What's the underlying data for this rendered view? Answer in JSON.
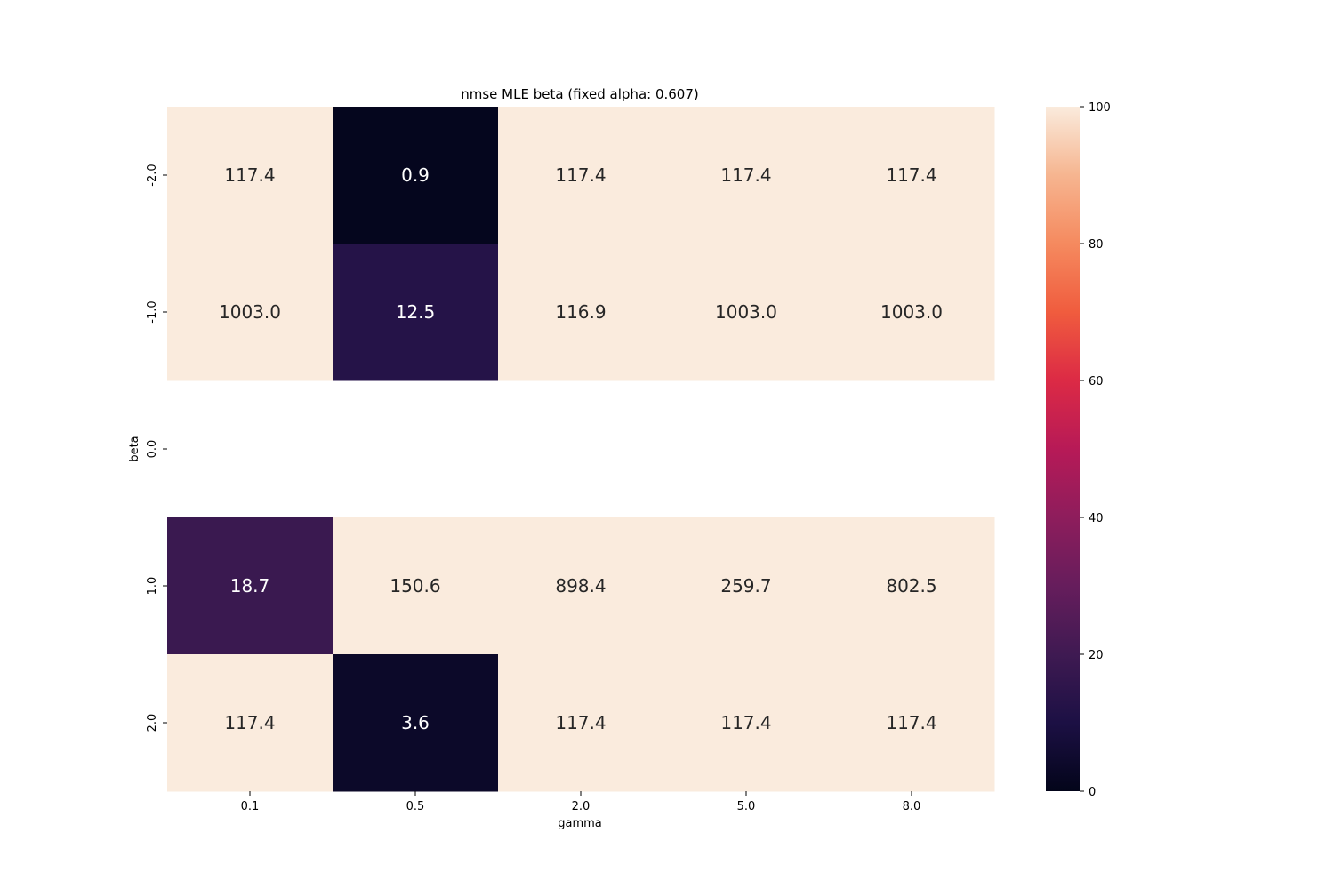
{
  "chart_data": {
    "type": "heatmap",
    "title": "nmse MLE beta (fixed alpha: 0.607)",
    "xlabel": "gamma",
    "ylabel": "beta",
    "x_categories": [
      "0.1",
      "0.5",
      "2.0",
      "5.0",
      "8.0"
    ],
    "y_categories": [
      "-2.0",
      "-1.0",
      "0.0",
      "1.0",
      "2.0"
    ],
    "values": [
      [
        117.4,
        0.9,
        117.4,
        117.4,
        117.4
      ],
      [
        1003.0,
        12.5,
        116.9,
        1003.0,
        1003.0
      ],
      [
        null,
        null,
        null,
        null,
        null
      ],
      [
        18.7,
        150.6,
        898.4,
        259.7,
        802.5
      ],
      [
        117.4,
        3.6,
        117.4,
        117.4,
        117.4
      ]
    ],
    "annotations": [
      [
        "117.4",
        "0.9",
        "117.4",
        "117.4",
        "117.4"
      ],
      [
        "1003.0",
        "12.5",
        "116.9",
        "1003.0",
        "1003.0"
      ],
      [
        "",
        "",
        "",
        "",
        ""
      ],
      [
        "18.7",
        "150.6",
        "898.4",
        "259.7",
        "802.5"
      ],
      [
        "117.4",
        "3.6",
        "117.4",
        "117.4",
        "117.4"
      ]
    ],
    "colorbar": {
      "range": [
        0,
        100
      ],
      "ticks": [
        "0",
        "20",
        "40",
        "60",
        "80",
        "100"
      ],
      "colormap": "rocket"
    },
    "grid": false
  }
}
